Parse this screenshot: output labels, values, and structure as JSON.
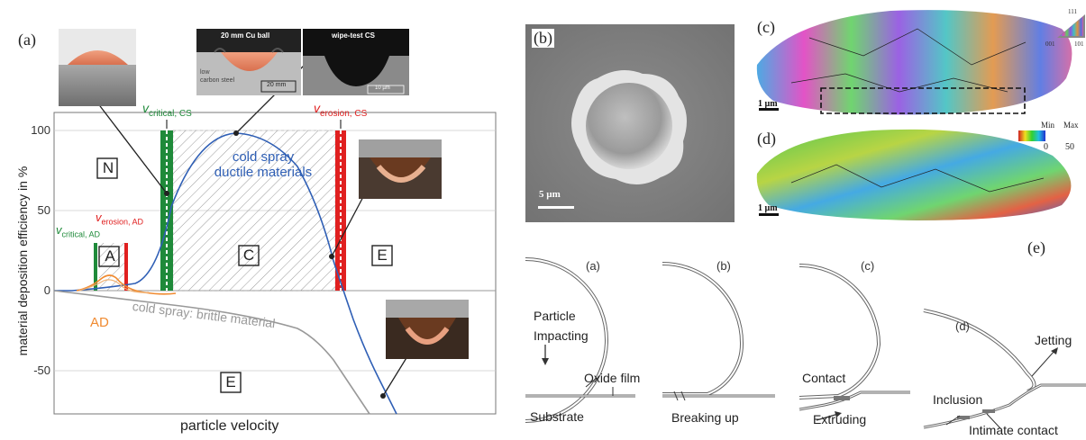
{
  "panel_a": {
    "label": "(a)",
    "ylabel": "material deposition efficiency in %",
    "xlabel": "particle velocity",
    "yticks": [
      "100",
      "50",
      "0",
      "-50"
    ],
    "v_critical_cs": "v",
    "v_critical_cs_sub": "critical, CS",
    "v_erosion_cs": "v",
    "v_erosion_cs_sub": "erosion, CS",
    "v_critical_ad": "v",
    "v_critical_ad_sub": "critical, AD",
    "v_erosion_ad": "v",
    "v_erosion_ad_sub": "erosion, AD",
    "region_N": "N",
    "region_A": "A",
    "region_C": "C",
    "region_E1": "E",
    "region_E2": "E",
    "cs_ductile_line1": "cold spray",
    "cs_ductile_line2": "ductile materials",
    "cs_brittle": "cold spray: brittle material",
    "ad": "AD",
    "inset_cu_title": "20 mm Cu ball",
    "inset_cu_sub1": "low",
    "inset_cu_sub2": "carbon steel",
    "inset_cu_scale": "20 mm",
    "inset_wipe_title": "wipe-test CS",
    "inset_wipe_scale": "10 µm"
  },
  "panel_b": {
    "label": "(b)",
    "scale": "5 µm"
  },
  "panel_c": {
    "label": "(c)",
    "scale": "1 µm",
    "key_top": "111",
    "key_left": "001",
    "key_right": "101"
  },
  "panel_d": {
    "label": "(d)",
    "scale": "1 µm",
    "min_label": "Min",
    "min_value": "0",
    "max_label": "Max",
    "max_value": "50"
  },
  "panel_e": {
    "label": "(e)",
    "sub_a": "(a)",
    "sub_b": "(b)",
    "sub_c": "(c)",
    "sub_d": "(d)",
    "particle": "Particle",
    "impacting": "Impacting",
    "oxide_film": "Oxide film",
    "substrate": "Substrate",
    "breaking_up": "Breaking up",
    "contact": "Contact",
    "extruding": "Extruding",
    "jetting": "Jetting",
    "inclusion": "Inclusion",
    "intimate_contact": "Intimate contact"
  }
}
